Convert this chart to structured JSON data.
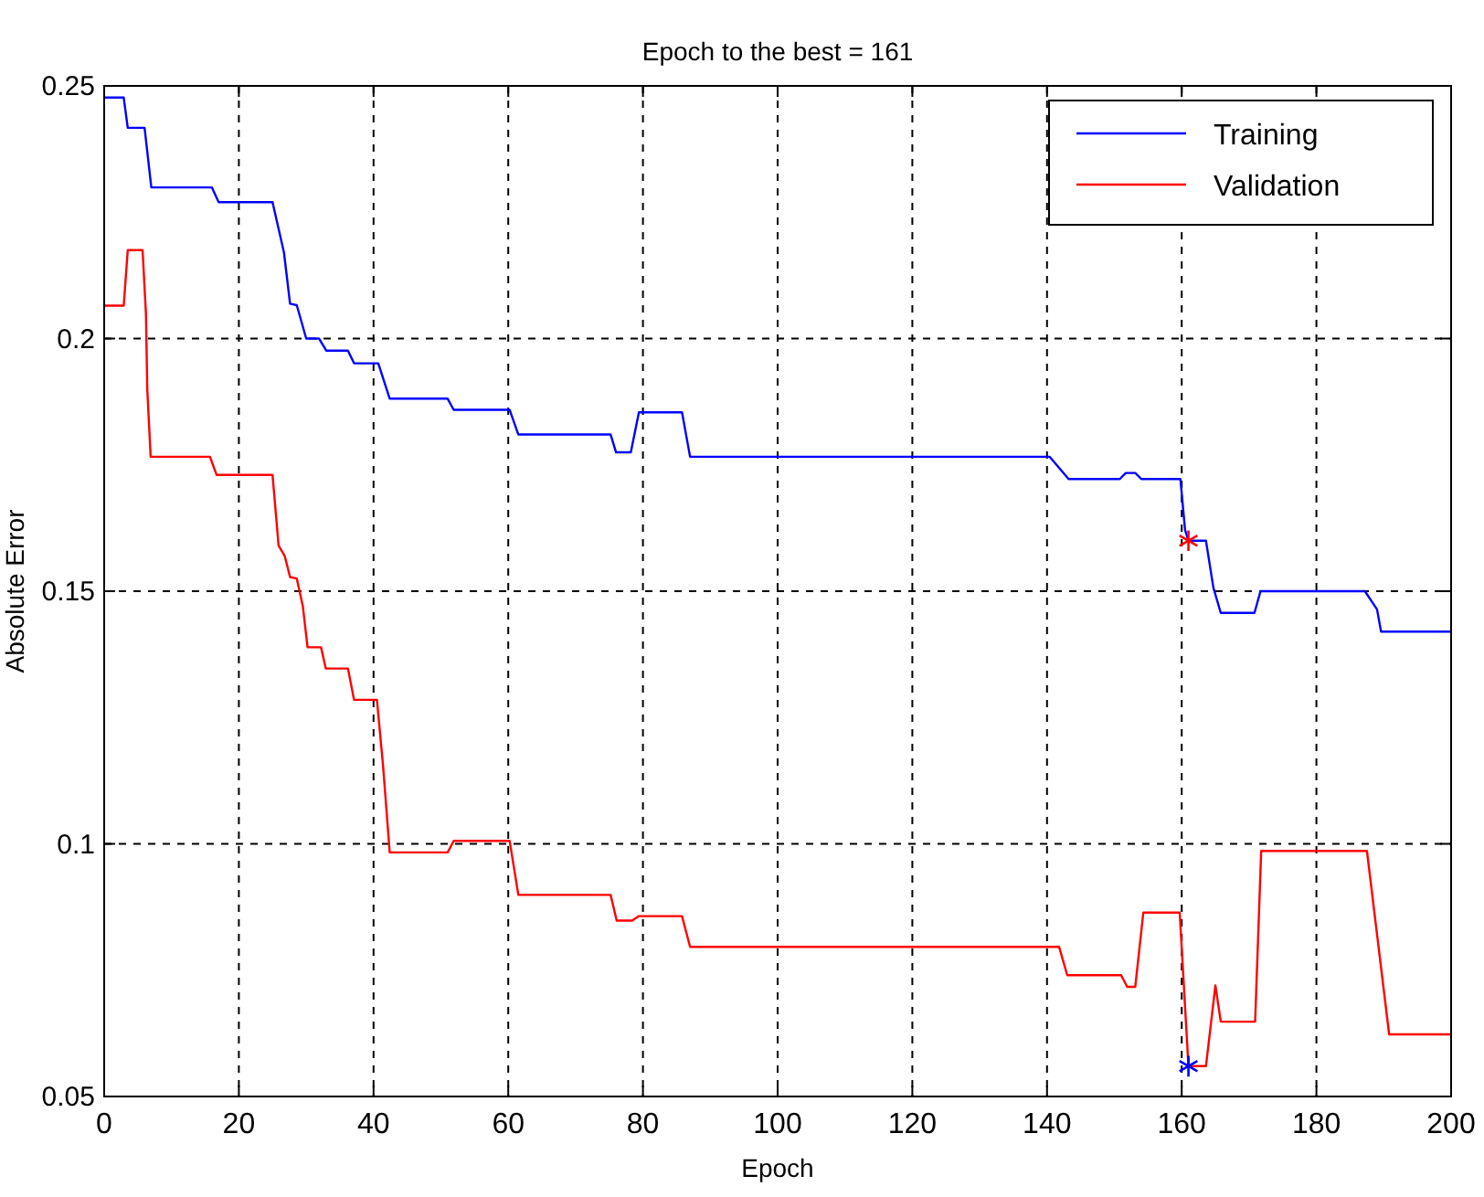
{
  "chart_data": {
    "type": "line",
    "title": "Epoch to the best = 161",
    "xlabel": "Epoch",
    "ylabel": "Absolute Error",
    "xlim": [
      0,
      200
    ],
    "ylim": [
      0.05,
      0.25
    ],
    "xticks": [
      0,
      20,
      40,
      60,
      80,
      100,
      120,
      140,
      160,
      180,
      200
    ],
    "yticks": [
      0.05,
      0.1,
      0.15,
      0.2,
      0.25
    ],
    "grid": true,
    "legend": "top right",
    "series": [
      {
        "name": "Training",
        "color": "#0000ff",
        "x": [
          0,
          2.9,
          3.5,
          6,
          7,
          16,
          17,
          25,
          26.7,
          27.6,
          28.6,
          30,
          31.9,
          33,
          36.2,
          37.1,
          40.7,
          42.4,
          51,
          51.9,
          60.2,
          61.5,
          75.2,
          76,
          78.2,
          79.4,
          85.8,
          87,
          140.4,
          143.2,
          150.8,
          151.7,
          153.1,
          154,
          159.8,
          160.5,
          161,
          163.6,
          164.7,
          165.8,
          170.8,
          171.7,
          187.2,
          189,
          189.6,
          200
        ],
        "values": [
          0.2477,
          0.2477,
          0.2417,
          0.2417,
          0.2299,
          0.2299,
          0.227,
          0.227,
          0.217,
          0.2069,
          0.2066,
          0.2,
          0.2,
          0.1976,
          0.1976,
          0.1951,
          0.1951,
          0.1881,
          0.1881,
          0.1859,
          0.1859,
          0.181,
          0.181,
          0.1775,
          0.1775,
          0.1854,
          0.1854,
          0.1766,
          0.1766,
          0.1722,
          0.1722,
          0.1734,
          0.1734,
          0.1722,
          0.1722,
          0.1621,
          0.16,
          0.16,
          0.1507,
          0.1457,
          0.1457,
          0.15,
          0.15,
          0.1464,
          0.142,
          0.142
        ]
      },
      {
        "name": "Validation",
        "color": "#ff0000",
        "x": [
          0,
          2.9,
          3.5,
          5.7,
          6.2,
          6.4,
          6.9,
          15.7,
          16.7,
          25,
          25.9,
          26.8,
          27.6,
          28.6,
          29.5,
          30.2,
          32.2,
          32.9,
          36.2,
          37.1,
          40.5,
          41.4,
          42.4,
          51,
          51.9,
          60.2,
          61.5,
          75.2,
          76.1,
          78.4,
          79.4,
          85.8,
          87,
          141.8,
          143,
          151,
          151.9,
          153.1,
          154.3,
          159.7,
          160.8,
          161,
          163.6,
          165,
          165.8,
          170.9,
          171.8,
          187.5,
          190.8,
          200
        ],
        "values": [
          0.2065,
          0.2065,
          0.2175,
          0.2175,
          0.205,
          0.19,
          0.1766,
          0.1766,
          0.173,
          0.173,
          0.159,
          0.157,
          0.1528,
          0.1525,
          0.147,
          0.1389,
          0.1389,
          0.1347,
          0.1347,
          0.1285,
          0.1285,
          0.1156,
          0.0983,
          0.0983,
          0.1006,
          0.1006,
          0.0899,
          0.0899,
          0.0848,
          0.0848,
          0.0857,
          0.0857,
          0.0796,
          0.0796,
          0.074,
          0.074,
          0.0717,
          0.0717,
          0.0864,
          0.0864,
          0.0607,
          0.056,
          0.056,
          0.072,
          0.0648,
          0.0648,
          0.0986,
          0.0986,
          0.0623,
          0.0623
        ]
      },
      {
        "type": "scatter",
        "marker": "cross",
        "color": "#ff0000",
        "x": [
          161
        ],
        "values": [
          0.16
        ]
      },
      {
        "type": "scatter",
        "marker": "cross",
        "color": "#0000ff",
        "x": [
          161
        ],
        "values": [
          0.056
        ]
      }
    ]
  }
}
